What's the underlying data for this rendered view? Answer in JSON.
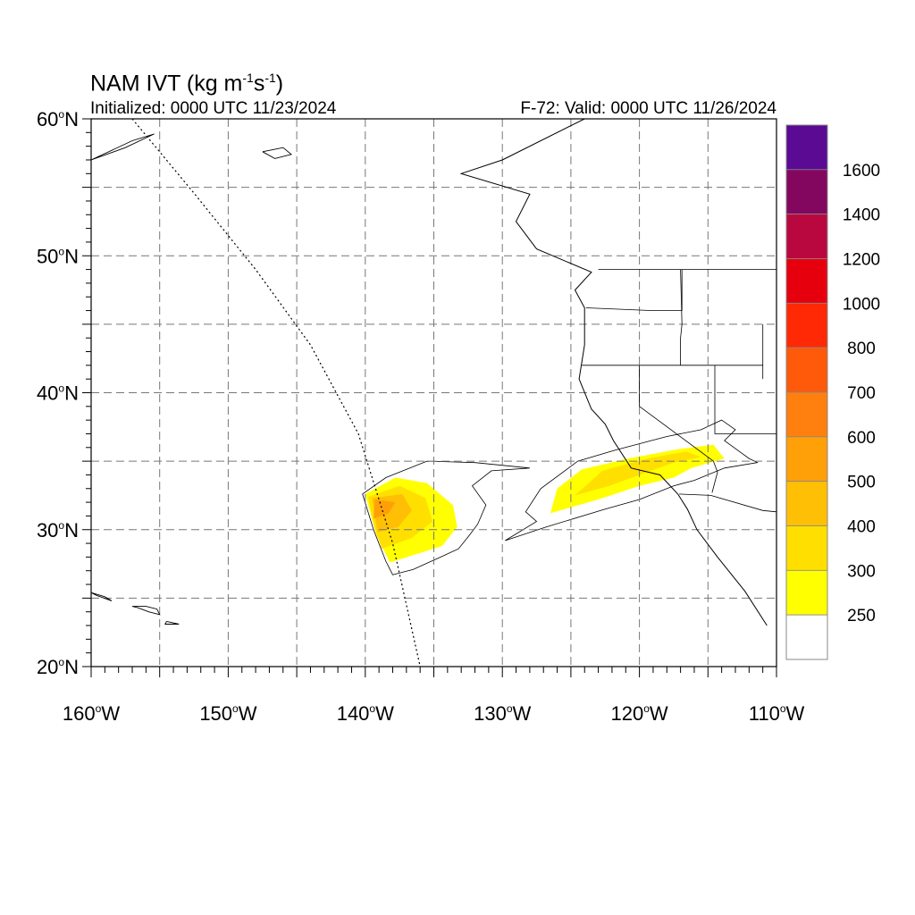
{
  "title": {
    "text": "NAM IVT (kg m",
    "exp1": "-1",
    "mid": "s",
    "exp2": "-1",
    "close": ")"
  },
  "subtitle_left": "Initialized: 0000 UTC 11/23/2024",
  "subtitle_right": "F-72: Valid: 0000 UTC 11/26/2024",
  "map": {
    "lon_range": [
      -160,
      -110
    ],
    "lat_range": [
      20,
      60
    ],
    "lat_labels": [
      {
        "lat": 60,
        "text": "60",
        "sym": "o",
        "hem": "N"
      },
      {
        "lat": 50,
        "text": "50",
        "sym": "o",
        "hem": "N"
      },
      {
        "lat": 40,
        "text": "40",
        "sym": "o",
        "hem": "N"
      },
      {
        "lat": 30,
        "text": "30",
        "sym": "o",
        "hem": "N"
      },
      {
        "lat": 20,
        "text": "20",
        "sym": "o",
        "hem": "N"
      }
    ],
    "lon_labels": [
      {
        "lon": -160,
        "text": "160",
        "sym": "o",
        "hem": "W"
      },
      {
        "lon": -150,
        "text": "150",
        "sym": "o",
        "hem": "W"
      },
      {
        "lon": -140,
        "text": "140",
        "sym": "o",
        "hem": "W"
      },
      {
        "lon": -130,
        "text": "130",
        "sym": "o",
        "hem": "W"
      },
      {
        "lon": -120,
        "text": "120",
        "sym": "o",
        "hem": "W"
      },
      {
        "lon": -110,
        "text": "110",
        "sym": "o",
        "hem": "W"
      }
    ],
    "domain_boundary": [
      [
        -157,
        60
      ],
      [
        -152.6,
        54.7
      ],
      [
        -148,
        49
      ],
      [
        -144,
        43.5
      ],
      [
        -140.5,
        37
      ],
      [
        -138,
        29
      ],
      [
        -136,
        20
      ]
    ],
    "coastline": [
      [
        -124,
        60
      ],
      [
        -130,
        57
      ],
      [
        -133,
        56
      ],
      [
        -128,
        54.5
      ],
      [
        -129,
        52.5
      ],
      [
        -127.5,
        50.5
      ],
      [
        -123.5,
        48.8
      ],
      [
        -124.7,
        47.5
      ],
      [
        -124,
        46.2
      ],
      [
        -124,
        43.5
      ],
      [
        -124.4,
        41
      ],
      [
        -123.5,
        38.8
      ],
      [
        -122.5,
        37.7
      ],
      [
        -121.9,
        36.5
      ],
      [
        -120.6,
        34.5
      ],
      [
        -118.5,
        34
      ],
      [
        -117.2,
        32.6
      ],
      [
        -116.5,
        31.5
      ],
      [
        -115.8,
        30
      ],
      [
        -114.3,
        28
      ],
      [
        -112.3,
        25.5
      ],
      [
        -110.7,
        23
      ]
    ],
    "state_lines": [
      [
        [
          -124.2,
          42
        ],
        [
          -120,
          42
        ],
        [
          -117,
          42
        ],
        [
          -111,
          42
        ]
      ],
      [
        [
          -123.9,
          46.2
        ],
        [
          -119,
          46
        ],
        [
          -116.9,
          46
        ],
        [
          -116.9,
          49
        ]
      ],
      [
        [
          -120,
          42
        ],
        [
          -120,
          39
        ],
        [
          -114.6,
          35
        ],
        [
          -114.3,
          34.2
        ],
        [
          -114.7,
          32.7
        ]
      ],
      [
        [
          -117,
          49
        ],
        [
          -116.9,
          45
        ],
        [
          -117,
          44
        ],
        [
          -117,
          42
        ]
      ],
      [
        [
          -111,
          45
        ],
        [
          -111,
          41
        ]
      ],
      [
        [
          -114.5,
          42
        ],
        [
          -114.5,
          37
        ],
        [
          -110,
          37
        ]
      ],
      [
        [
          -117.1,
          32.6
        ],
        [
          -114.8,
          32.5
        ],
        [
          -111,
          31.4
        ],
        [
          -110,
          31.3
        ]
      ],
      [
        [
          -123,
          49
        ],
        [
          -110,
          49
        ]
      ]
    ],
    "islands": [
      [
        [
          -160,
          25.4
        ],
        [
          -159,
          25.1
        ],
        [
          -158.5,
          24.8
        ],
        [
          -159.6,
          25.2
        ],
        [
          -160,
          25.4
        ]
      ],
      [
        [
          -157,
          24.4
        ],
        [
          -156,
          24.4
        ],
        [
          -155.2,
          24.2
        ],
        [
          -155,
          23.8
        ],
        [
          -155.8,
          24
        ],
        [
          -156.6,
          24.3
        ],
        [
          -157,
          24.4
        ]
      ],
      [
        [
          -154.5,
          23.3
        ],
        [
          -153.6,
          23.1
        ],
        [
          -154.6,
          23.1
        ],
        [
          -154.5,
          23.3
        ]
      ],
      [
        [
          -147.5,
          57.6
        ],
        [
          -146,
          57.9
        ],
        [
          -145.4,
          57.4
        ],
        [
          -146.6,
          57.1
        ],
        [
          -147.5,
          57.6
        ]
      ],
      [
        [
          -160,
          57
        ],
        [
          -157,
          58.4
        ],
        [
          -155.4,
          58.9
        ],
        [
          -157.5,
          57.9
        ],
        [
          -160,
          57
        ]
      ]
    ],
    "colorbar": {
      "levels": [
        "1600",
        "1400",
        "1200",
        "1000",
        "800",
        "700",
        "600",
        "500",
        "400",
        "300",
        "250"
      ],
      "colors": [
        "#5a0a93",
        "#83075f",
        "#b9083f",
        "#e6000e",
        "#ff2a05",
        "#ff5a0a",
        "#ff7f0f",
        "#ffa008",
        "#ffbf04",
        "#ffdf00",
        "#ffff00",
        "#ffffff"
      ]
    },
    "ivt_fields": [
      {
        "name": "offshore-plume",
        "layers": [
          {
            "level": "250",
            "poly": [
              [
                -138,
                26.7
              ],
              [
                -136.5,
                27.1
              ],
              [
                -134.5,
                28
              ],
              [
                -133.2,
                28.6
              ],
              [
                -132.4,
                29.6
              ],
              [
                -131.8,
                30.4
              ],
              [
                -131.2,
                31.8
              ],
              [
                -132.2,
                33.2
              ],
              [
                -130.8,
                34.3
              ],
              [
                -128,
                34.5
              ],
              [
                -132,
                34.9
              ],
              [
                -135.5,
                35
              ],
              [
                -138.5,
                33.8
              ],
              [
                -140.2,
                32.6
              ],
              [
                -139.4,
                30
              ],
              [
                -138.5,
                27.7
              ],
              [
                -138,
                26.7
              ]
            ]
          },
          {
            "level": "300",
            "poly": [
              [
                -138.2,
                27.6
              ],
              [
                -136.3,
                28.2
              ],
              [
                -134.4,
                28.8
              ],
              [
                -133.3,
                30.2
              ],
              [
                -133.6,
                31.8
              ],
              [
                -135.5,
                33.4
              ],
              [
                -137.8,
                33.8
              ],
              [
                -140,
                32.6
              ],
              [
                -139.2,
                29.6
              ],
              [
                -138.2,
                27.6
              ]
            ]
          },
          {
            "level": "400",
            "poly": [
              [
                -138.8,
                28.6
              ],
              [
                -136.6,
                29.4
              ],
              [
                -135.1,
                30.6
              ],
              [
                -135.6,
                32.3
              ],
              [
                -137.5,
                33.2
              ],
              [
                -139.8,
                32.4
              ],
              [
                -139.4,
                30.4
              ],
              [
                -138.8,
                28.6
              ]
            ]
          },
          {
            "level": "500",
            "poly": [
              [
                -139.1,
                29.8
              ],
              [
                -137.6,
                30.2
              ],
              [
                -136.6,
                31.4
              ],
              [
                -137.3,
                32.6
              ],
              [
                -139.5,
                32.3
              ],
              [
                -139.1,
                29.8
              ]
            ]
          },
          {
            "level": "600",
            "poly": [
              [
                -139.4,
                30.8
              ],
              [
                -138.3,
                31.2
              ],
              [
                -137.8,
                32
              ],
              [
                -139.3,
                32.2
              ],
              [
                -139.4,
                30.8
              ]
            ]
          }
        ]
      },
      {
        "name": "coastal-plume",
        "layers": [
          {
            "level": "250",
            "poly": [
              [
                -129.8,
                29.2
              ],
              [
                -126.8,
                30.2
              ],
              [
                -122.5,
                31.5
              ],
              [
                -120,
                32.2
              ],
              [
                -117.5,
                33.2
              ],
              [
                -116,
                33.6
              ],
              [
                -113.8,
                34.5
              ],
              [
                -111.4,
                34.9
              ],
              [
                -112,
                35.2
              ],
              [
                -113.8,
                36.5
              ],
              [
                -113,
                37.3
              ],
              [
                -114,
                38
              ],
              [
                -115.5,
                37.3
              ],
              [
                -118,
                36.8
              ],
              [
                -121.8,
                35.8
              ],
              [
                -124.5,
                35
              ],
              [
                -127.2,
                33
              ],
              [
                -128.3,
                31.3
              ],
              [
                -127.5,
                30.6
              ],
              [
                -129.8,
                29.2
              ]
            ]
          },
          {
            "level": "300",
            "poly": [
              [
                -126.5,
                31.2
              ],
              [
                -123,
                32.2
              ],
              [
                -120,
                33.2
              ],
              [
                -117.5,
                33.8
              ],
              [
                -116.2,
                34.5
              ],
              [
                -113.8,
                35.2
              ],
              [
                -114.6,
                36.2
              ],
              [
                -117,
                35.9
              ],
              [
                -120.8,
                35.2
              ],
              [
                -124.2,
                34.4
              ],
              [
                -126,
                33
              ],
              [
                -126.5,
                31.2
              ]
            ]
          },
          {
            "level": "400",
            "poly": [
              [
                -124.7,
                32.5
              ],
              [
                -122.2,
                33.2
              ],
              [
                -120,
                34
              ],
              [
                -117.5,
                34.9
              ],
              [
                -115.5,
                35.3
              ],
              [
                -116.6,
                35.7
              ],
              [
                -119.4,
                35.2
              ],
              [
                -122.7,
                34.3
              ],
              [
                -124.7,
                32.5
              ]
            ]
          }
        ]
      }
    ]
  }
}
